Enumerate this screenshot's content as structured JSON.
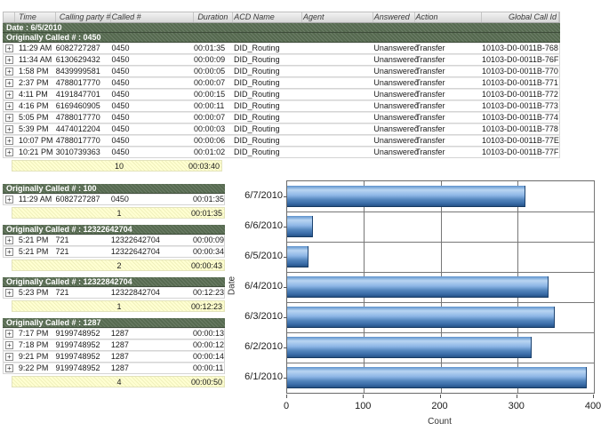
{
  "colors": {
    "group_band_green": "#566a50",
    "summary_yellow": "#ffffd2",
    "bar_blue_light": "#b9d5f2",
    "bar_blue_dark": "#1f4a7c",
    "grid_gray": "#777777"
  },
  "icons": {
    "expand": "+"
  },
  "main_table": {
    "columns": [
      "",
      "Time",
      "Calling party #",
      "Called #",
      "Duration",
      "ACD Name",
      "Agent",
      "Answered",
      "Action",
      "Global Call Id"
    ],
    "date_header": "Date : 6/5/2010",
    "group_header": "Originally Called # : 0450",
    "rows": [
      {
        "time": "11:29 AM",
        "calling": "6082727287",
        "called": "0450",
        "duration": "00:01:35",
        "acd": "DID_Routing",
        "agent": "",
        "answered": "Unanswered",
        "action": "Transfer",
        "global_id": "10103-D0-0011B-768"
      },
      {
        "time": "11:34 AM",
        "calling": "6130629432",
        "called": "0450",
        "duration": "00:00:09",
        "acd": "DID_Routing",
        "agent": "",
        "answered": "Unanswered",
        "action": "Transfer",
        "global_id": "10103-D0-0011B-76F"
      },
      {
        "time": "1:58 PM",
        "calling": "8439999581",
        "called": "0450",
        "duration": "00:00:05",
        "acd": "DID_Routing",
        "agent": "",
        "answered": "Unanswered",
        "action": "Transfer",
        "global_id": "10103-D0-0011B-770"
      },
      {
        "time": "2:37 PM",
        "calling": "4788017770",
        "called": "0450",
        "duration": "00:00:07",
        "acd": "DID_Routing",
        "agent": "",
        "answered": "Unanswered",
        "action": "Transfer",
        "global_id": "10103-D0-0011B-771"
      },
      {
        "time": "4:11 PM",
        "calling": "4191847701",
        "called": "0450",
        "duration": "00:00:15",
        "acd": "DID_Routing",
        "agent": "",
        "answered": "Unanswered",
        "action": "Transfer",
        "global_id": "10103-D0-0011B-772"
      },
      {
        "time": "4:16 PM",
        "calling": "6169460905",
        "called": "0450",
        "duration": "00:00:11",
        "acd": "DID_Routing",
        "agent": "",
        "answered": "Unanswered",
        "action": "Transfer",
        "global_id": "10103-D0-0011B-773"
      },
      {
        "time": "5:05 PM",
        "calling": "4788017770",
        "called": "0450",
        "duration": "00:00:07",
        "acd": "DID_Routing",
        "agent": "",
        "answered": "Unanswered",
        "action": "Transfer",
        "global_id": "10103-D0-0011B-774"
      },
      {
        "time": "5:39 PM",
        "calling": "4474012204",
        "called": "0450",
        "duration": "00:00:03",
        "acd": "DID_Routing",
        "agent": "",
        "answered": "Unanswered",
        "action": "Transfer",
        "global_id": "10103-D0-0011B-778"
      },
      {
        "time": "10:07 PM",
        "calling": "4788017770",
        "called": "0450",
        "duration": "00:00:06",
        "acd": "DID_Routing",
        "agent": "",
        "answered": "Unanswered",
        "action": "Transfer",
        "global_id": "10103-D0-0011B-77E"
      },
      {
        "time": "10:21 PM",
        "calling": "3010739363",
        "called": "0450",
        "duration": "00:01:02",
        "acd": "DID_Routing",
        "agent": "",
        "answered": "Unanswered",
        "action": "Transfer",
        "global_id": "10103-D0-0011B-77F"
      }
    ],
    "summary": {
      "count": "10",
      "total_duration": "00:03:40"
    }
  },
  "groups": [
    {
      "header": "Originally Called # : 100",
      "rows": [
        {
          "time": "11:29 AM",
          "calling": "6082727287",
          "called": "0450",
          "duration": "00:01:35"
        }
      ],
      "summary": {
        "count": "1",
        "total_duration": "00:01:35"
      }
    },
    {
      "header": "Originally Called # : 12322642704",
      "rows": [
        {
          "time": "5:21 PM",
          "calling": "721",
          "called": "12322642704",
          "duration": "00:00:09"
        },
        {
          "time": "5:21 PM",
          "calling": "721",
          "called": "12322642704",
          "duration": "00:00:34"
        }
      ],
      "summary": {
        "count": "2",
        "total_duration": "00:00:43"
      }
    },
    {
      "header": "Originally Called # : 12322842704",
      "rows": [
        {
          "time": "5:23 PM",
          "calling": "721",
          "called": "12322842704",
          "duration": "00:12:23"
        }
      ],
      "summary": {
        "count": "1",
        "total_duration": "00:12:23"
      }
    },
    {
      "header": "Originally Called # : 1287",
      "rows": [
        {
          "time": "7:17 PM",
          "calling": "9199748952",
          "called": "1287",
          "duration": "00:00:13"
        },
        {
          "time": "7:18 PM",
          "calling": "9199748952",
          "called": "1287",
          "duration": "00:00:12"
        },
        {
          "time": "9:21 PM",
          "calling": "9199748952",
          "called": "1287",
          "duration": "00:00:14"
        },
        {
          "time": "9:22 PM",
          "calling": "9199748952",
          "called": "1287",
          "duration": "00:00:11"
        }
      ],
      "summary": {
        "count": "4",
        "total_duration": "00:00:50"
      }
    }
  ],
  "chart_data": {
    "type": "bar",
    "orientation": "horizontal",
    "categories": [
      "6/7/2010",
      "6/6/2010",
      "6/5/2010",
      "6/4/2010",
      "6/3/2010",
      "6/2/2010",
      "6/1/2010"
    ],
    "values": [
      310,
      32,
      27,
      340,
      348,
      318,
      390
    ],
    "title": "",
    "xlabel": "Count",
    "ylabel": "Date",
    "xlim": [
      0,
      400
    ],
    "xticks": [
      0,
      100,
      200,
      300,
      400
    ],
    "grid": true,
    "legend": "none"
  }
}
